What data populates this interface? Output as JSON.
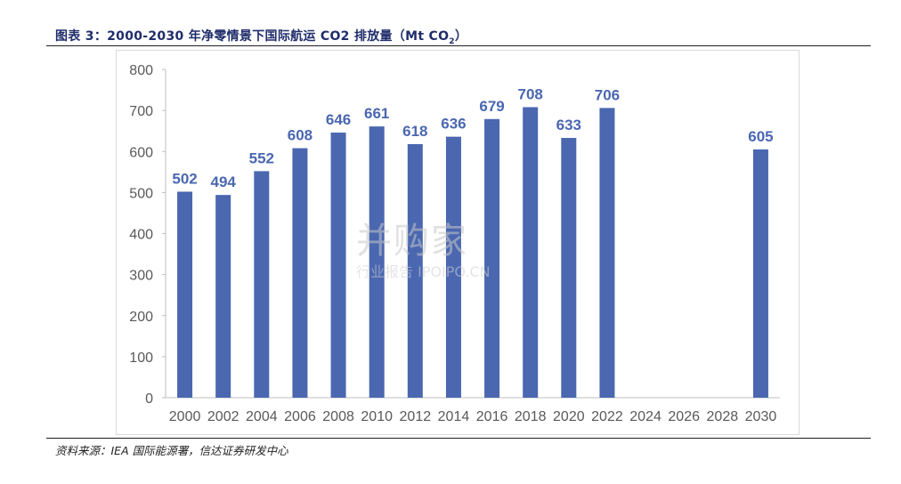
{
  "header": {
    "title": "图表 3：2000-2030 年净零情景下国际航运 CO2 排放量（Mt  CO",
    "title_sub": "2",
    "title_close": "）"
  },
  "footer": {
    "source": "资料来源：IEA 国际能源署，信达证券研发中心"
  },
  "watermark": {
    "brand": "并购家",
    "tagline": "行业报告 IPOIPO.CN"
  },
  "colors": {
    "bar": "#4a67b0",
    "label": "#4a67b0",
    "axis_text": "#595959",
    "axis_line": "#bfbfbf"
  },
  "chart_data": {
    "type": "bar",
    "categories": [
      "2000",
      "2002",
      "2004",
      "2006",
      "2008",
      "2010",
      "2012",
      "2014",
      "2016",
      "2018",
      "2020",
      "2022",
      "2024",
      "2026",
      "2028",
      "2030"
    ],
    "values": [
      502,
      494,
      552,
      608,
      646,
      661,
      618,
      636,
      679,
      708,
      633,
      706,
      null,
      null,
      null,
      605
    ],
    "title": "",
    "xlabel": "",
    "ylabel": "",
    "ylim": [
      0,
      800
    ],
    "yticks": [
      0,
      100,
      200,
      300,
      400,
      500,
      600,
      700,
      800
    ],
    "grid": false,
    "legend": "none"
  }
}
